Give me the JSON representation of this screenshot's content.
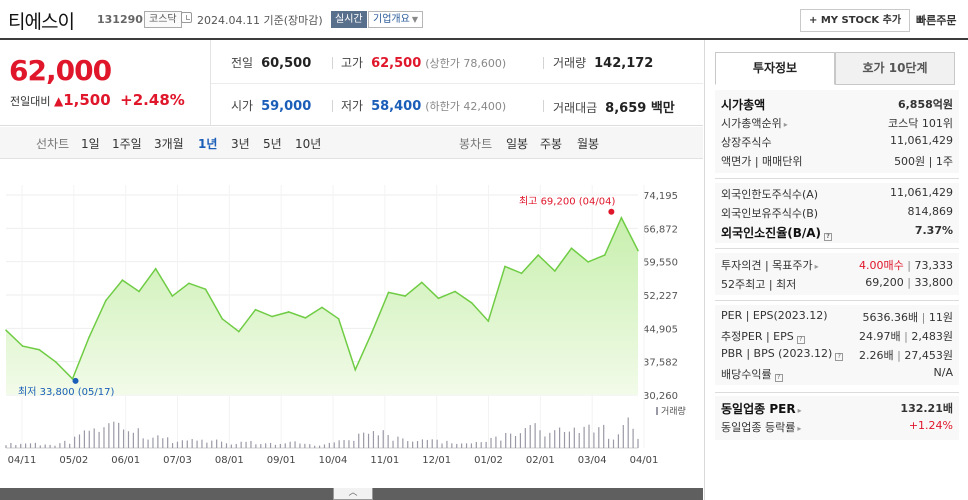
{
  "header": {
    "name": "티에스이",
    "code": "131290",
    "market": "코스닥",
    "date_text": "2024.04.11  기준(장마감)",
    "realtime": "실시간",
    "overview": "기업개요",
    "mystock": "+ MY STOCK 추가",
    "quick": "빠른주문"
  },
  "price": {
    "current": "62,000",
    "change_label": "전일대비",
    "change_value": "1,500",
    "change_rate": "+2.48%",
    "prev_label": "전일",
    "prev": "60,500",
    "high_label": "고가",
    "high": "62,500",
    "upper_limit": "(상한가 78,600)",
    "volume_label": "거래량",
    "volume": "142,172",
    "open_label": "시가",
    "open": "59,000",
    "low_label": "저가",
    "low": "58,400",
    "lower_limit": "(하한가 42,400)",
    "amount_label": "거래대금",
    "amount": "8,659 백만"
  },
  "tabs": {
    "line_chart": "선차트",
    "ranges": [
      "1일",
      "1주일",
      "3개월",
      "1년",
      "3년",
      "5년",
      "10년"
    ],
    "selected_range": "1년",
    "candle_chart": "봉차트",
    "candles": [
      "일봉",
      "주봉",
      "월봉"
    ]
  },
  "chart_data": {
    "type": "area",
    "title": "",
    "xlabel": "",
    "ylabel": "",
    "ylim": [
      30260,
      74195
    ],
    "y_ticks": [
      "74,195",
      "66,872",
      "59,550",
      "52,227",
      "44,905",
      "37,582",
      "30,260"
    ],
    "x_ticks": [
      "04/11",
      "05/02",
      "06/01",
      "07/03",
      "08/01",
      "09/01",
      "10/04",
      "11/01",
      "12/01",
      "01/02",
      "02/01",
      "03/04",
      "04/01"
    ],
    "x": [
      "04/11",
      "04/20",
      "05/02",
      "05/10",
      "05/17",
      "05/25",
      "06/01",
      "06/10",
      "06/20",
      "07/03",
      "07/12",
      "07/24",
      "08/01",
      "08/10",
      "08/20",
      "09/01",
      "09/12",
      "09/22",
      "10/04",
      "10/15",
      "10/25",
      "11/01",
      "11/10",
      "11/20",
      "12/01",
      "12/12",
      "12/22",
      "01/02",
      "01/12",
      "01/22",
      "02/01",
      "02/12",
      "02/22",
      "03/04",
      "03/14",
      "03/25",
      "04/01",
      "04/04",
      "04/11"
    ],
    "values": [
      44500,
      41000,
      40200,
      37500,
      33800,
      43000,
      51000,
      55500,
      53000,
      58000,
      52000,
      54800,
      53500,
      47000,
      44200,
      49000,
      47500,
      48500,
      47200,
      49500,
      47000,
      35800,
      44000,
      52800,
      52000,
      55000,
      51500,
      53000,
      50500,
      46500,
      58500,
      57000,
      61000,
      57500,
      62500,
      59500,
      61000,
      69200,
      62000
    ],
    "volume": [
      0.1,
      0.12,
      0.08,
      0.15,
      0.35,
      0.45,
      0.6,
      0.38,
      0.2,
      0.28,
      0.15,
      0.22,
      0.18,
      0.1,
      0.2,
      0.12,
      0.1,
      0.14,
      0.08,
      0.12,
      0.18,
      0.3,
      0.4,
      0.25,
      0.14,
      0.2,
      0.15,
      0.1,
      0.12,
      0.25,
      0.3,
      0.55,
      0.35,
      0.4,
      0.5,
      0.45,
      0.3,
      0.65,
      0.2
    ],
    "max_label": "최고 69,200 (04/04)",
    "min_label": "최저 33,800 (05/17)",
    "volume_legend": "거래량",
    "line_color": "#6fcc44"
  },
  "info": {
    "tab_active": "투자정보",
    "tab_other": "호가 10단계",
    "g1": [
      {
        "k": "시가총액",
        "v": "6,858억원"
      },
      {
        "k": "시가총액순위",
        "v": "코스닥 101위"
      },
      {
        "k": "상장주식수",
        "v": "11,061,429"
      },
      {
        "k": "액면가 | 매매단위",
        "v": "500원 | 1주"
      }
    ],
    "g2": [
      {
        "k": "외국인한도주식수(A)",
        "v": "11,061,429"
      },
      {
        "k": "외국인보유주식수(B)",
        "v": "814,869"
      },
      {
        "k": "외국인소진율(B/A)",
        "v": "7.37%"
      }
    ],
    "g3": [
      {
        "k": "투자의견 | 목표주가",
        "v1": "4.00매수",
        "v2": "73,333"
      },
      {
        "k": "52주최고 | 최저",
        "v1": "69,200",
        "v2": "33,800"
      }
    ],
    "g4": [
      {
        "k": "PER | EPS(2023.12)",
        "v1": "5636.36배",
        "v2": "11원"
      },
      {
        "k": "추정PER | EPS",
        "v1": "24.97배",
        "v2": "2,483원"
      },
      {
        "k": "PBR | BPS (2023.12)",
        "v1": "2.26배",
        "v2": "27,453원"
      },
      {
        "k": "배당수익률",
        "v": "N/A"
      }
    ],
    "g5": [
      {
        "k": "동일업종 PER",
        "v": "132.21배"
      },
      {
        "k": "동일업종 등락률",
        "v": "+1.24%"
      }
    ]
  }
}
